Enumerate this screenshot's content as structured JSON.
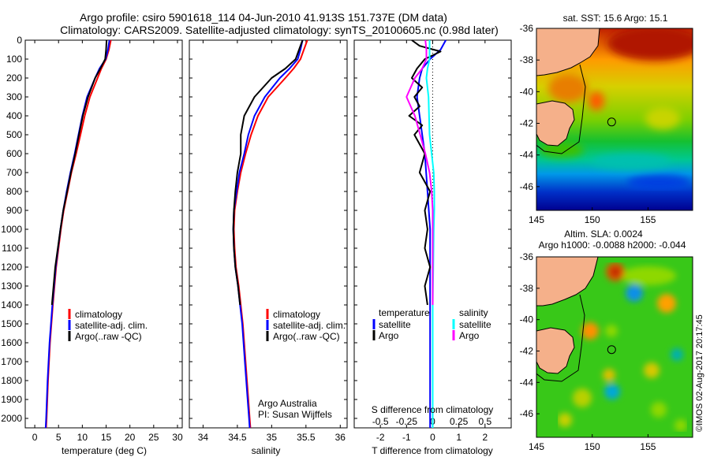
{
  "title": {
    "line1": "Argo profile: csiro 5901618_114 04-Jun-2010 41.913S 151.737E (DM data)",
    "line2": "Climatology: CARS2009. Satellite-adjusted climatology: synTS_20100605.nc (0.98d later)"
  },
  "credit": {
    "line1": "Argo Australia",
    "line2": "PI: Susan Wijffels"
  },
  "watermark": "©IMOS 02-Aug-2017 20:17:45",
  "colors": {
    "climatology": "#ff0000",
    "satellite": "#0000ff",
    "argo": "#000000",
    "salinity_satellite": "#00ffff",
    "salinity_argo": "#ff00ff",
    "land": "#f5b08a"
  },
  "legend_profile": [
    "climatology",
    "satellite-adj. clim.",
    "Argo(..raw -QC)"
  ],
  "legend_diff": {
    "temperature_title": "temperature",
    "salinity_title": "salinity",
    "temperature_items": [
      "satellite",
      "Argo"
    ],
    "salinity_items": [
      "satellite",
      "Argo"
    ]
  },
  "map_sst": {
    "title": "sat. SST: 15.6 Argo: 15.1"
  },
  "map_sla": {
    "title": "Altim. SLA: 0.0024",
    "subtitle": "Argo h1000: -0.0088 h2000: -0.044"
  },
  "chart_data": [
    {
      "type": "line",
      "xlabel": "temperature (deg C)",
      "ylabel": "",
      "xlim": [
        -2,
        31
      ],
      "ylim": [
        2050,
        0
      ],
      "xticks": [
        0,
        5,
        10,
        15,
        20,
        25,
        30
      ],
      "yticks": [
        0,
        100,
        200,
        300,
        400,
        500,
        600,
        700,
        800,
        900,
        1000,
        1100,
        1200,
        1300,
        1400,
        1500,
        1600,
        1700,
        1800,
        1900,
        2000
      ],
      "legend": "lower-middle",
      "depth": [
        0,
        50,
        100,
        150,
        200,
        300,
        400,
        500,
        600,
        700,
        800,
        900,
        1000,
        1200,
        1400,
        1600,
        1800,
        2000,
        2050
      ],
      "series": [
        {
          "name": "climatology",
          "color": "#ff0000",
          "values": [
            16.0,
            15.6,
            15.0,
            14.0,
            13.2,
            11.6,
            10.5,
            9.6,
            8.7,
            7.7,
            6.9,
            6.1,
            5.5,
            4.5,
            3.8,
            3.2,
            2.8,
            2.5,
            2.4
          ]
        },
        {
          "name": "satellite-adj. clim.",
          "color": "#0000ff",
          "values": [
            15.7,
            15.4,
            14.9,
            13.6,
            12.7,
            11.0,
            10.0,
            9.2,
            8.4,
            7.5,
            6.7,
            6.0,
            5.4,
            4.4,
            3.7,
            3.1,
            2.7,
            2.4,
            2.3
          ]
        },
        {
          "name": "Argo(..raw -QC)",
          "color": "#000000",
          "values": [
            15.1,
            15.0,
            14.8,
            13.8,
            12.7,
            11.2,
            10.1,
            9.3,
            8.5,
            7.6,
            6.8,
            6.0,
            5.4,
            4.3,
            3.6
          ]
        }
      ]
    },
    {
      "type": "line",
      "xlabel": "salinity",
      "ylabel": "",
      "xlim": [
        33.8,
        36.1
      ],
      "ylim": [
        2050,
        0
      ],
      "xticks": [
        34,
        34.5,
        35,
        35.5,
        36
      ],
      "legend": "lower-middle",
      "depth": [
        0,
        50,
        100,
        150,
        200,
        300,
        400,
        500,
        600,
        700,
        800,
        900,
        1000,
        1100,
        1200,
        1300,
        1400,
        1500,
        1700,
        1900,
        2000,
        2050
      ],
      "series": [
        {
          "name": "climatology",
          "color": "#ff0000",
          "values": [
            35.52,
            35.47,
            35.42,
            35.32,
            35.2,
            34.95,
            34.8,
            34.7,
            34.62,
            34.55,
            34.5,
            34.46,
            34.45,
            34.46,
            34.48,
            34.52,
            34.55,
            34.58,
            34.62,
            34.66,
            34.68,
            34.69
          ]
        },
        {
          "name": "satellite-adj. clim.",
          "color": "#0000ff",
          "values": [
            35.45,
            35.42,
            35.38,
            35.26,
            35.12,
            34.9,
            34.75,
            34.66,
            34.6,
            34.53,
            34.49,
            34.45,
            34.44,
            34.45,
            34.47,
            34.51,
            34.54,
            34.57,
            34.61,
            34.65,
            34.67,
            34.68
          ]
        },
        {
          "name": "Argo(..raw -QC)",
          "color": "#000000",
          "values": [
            35.45,
            35.4,
            35.35,
            35.2,
            35.0,
            34.75,
            34.6,
            34.55,
            34.55,
            34.5,
            34.47,
            34.45,
            34.44,
            34.45,
            34.47,
            34.51,
            34.54
          ]
        }
      ]
    },
    {
      "type": "line",
      "xlabel": "T difference from climatology",
      "x2label": "S difference from climatology",
      "ylabel": "",
      "xlim": [
        -3,
        3
      ],
      "x2lim": [
        -0.75,
        0.75
      ],
      "ylim": [
        2050,
        0
      ],
      "xticks": [
        -2,
        -1,
        0,
        1,
        2
      ],
      "x2ticks": [
        -0.5,
        -0.25,
        0,
        0.25,
        0.5
      ],
      "legend": "lower-middle",
      "series": [
        {
          "name": "temperature satellite",
          "color": "#0000ff",
          "axis": "T",
          "depth": [
            0,
            50,
            100,
            150,
            200,
            300,
            400,
            600,
            800,
            1000,
            1200,
            1400,
            1600,
            1800,
            2000,
            2050
          ],
          "values": [
            0.5,
            0.3,
            -0.1,
            -0.4,
            -0.5,
            -0.6,
            -0.5,
            -0.3,
            -0.2,
            -0.1,
            -0.1,
            -0.1,
            -0.1,
            -0.1,
            -0.1,
            -0.1
          ]
        },
        {
          "name": "temperature Argo",
          "color": "#000000",
          "axis": "T",
          "depth": [
            0,
            30,
            60,
            100,
            150,
            200,
            250,
            300,
            350,
            400,
            450,
            500,
            600,
            700,
            800,
            900,
            1000,
            1100,
            1200,
            1300,
            1400
          ],
          "values": [
            -0.8,
            -0.5,
            0.3,
            -0.3,
            -0.6,
            -0.8,
            -0.4,
            -0.7,
            -0.5,
            -0.9,
            -0.4,
            -0.7,
            -0.3,
            -0.5,
            -0.1,
            -0.3,
            -0.2,
            -0.3,
            -0.1,
            -0.3,
            -0.2
          ]
        },
        {
          "name": "salinity satellite",
          "color": "#00ffff",
          "axis": "S",
          "depth": [
            0,
            50,
            100,
            150,
            200,
            300,
            500,
            700,
            800,
            900,
            1000,
            1200,
            1400,
            1600,
            1800,
            2000,
            2050
          ],
          "values": [
            -0.03,
            -0.03,
            -0.03,
            -0.05,
            -0.06,
            -0.04,
            -0.03,
            0.01,
            0.015,
            0.015,
            0.01,
            0.005,
            0.0,
            0.0,
            0.0,
            0.0,
            0.0
          ]
        },
        {
          "name": "salinity Argo",
          "color": "#ff00ff",
          "axis": "S",
          "depth": [
            0,
            50,
            100,
            150,
            200,
            300,
            400,
            500,
            600,
            700,
            800,
            900,
            1000,
            1200,
            1400
          ],
          "values": [
            -0.07,
            -0.06,
            -0.06,
            -0.1,
            -0.17,
            -0.25,
            -0.17,
            -0.12,
            -0.07,
            -0.03,
            -0.01,
            0.0,
            0.0,
            0.0,
            0.0
          ]
        }
      ]
    },
    {
      "type": "heatmap",
      "title": "sat. SST: 15.6 Argo: 15.1",
      "xlim": [
        145,
        159
      ],
      "ylim": [
        -47.5,
        -36
      ],
      "xticks": [
        145,
        150,
        155
      ],
      "yticks": [
        -36,
        -38,
        -40,
        -42,
        -44,
        -46
      ],
      "argo_position": {
        "lon": 151.737,
        "lat": -41.913
      }
    },
    {
      "type": "heatmap",
      "title": "Altim. SLA: 0.0024",
      "subtitle": "Argo h1000: -0.0088 h2000: -0.044",
      "xlim": [
        145,
        159
      ],
      "ylim": [
        -47.5,
        -36
      ],
      "xticks": [
        145,
        150,
        155
      ],
      "yticks": [
        -36,
        -38,
        -40,
        -42,
        -44,
        -46
      ],
      "argo_position": {
        "lon": 151.737,
        "lat": -41.913
      }
    }
  ]
}
